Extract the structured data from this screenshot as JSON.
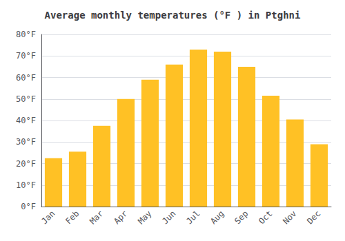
{
  "chart_data": {
    "type": "bar",
    "title": "Average monthly temperatures (°F ) in Ptghni",
    "categories": [
      "Jan",
      "Feb",
      "Mar",
      "Apr",
      "May",
      "Jun",
      "Jul",
      "Aug",
      "Sep",
      "Oct",
      "Nov",
      "Dec"
    ],
    "values": [
      22.5,
      25.5,
      37.5,
      50.0,
      59.0,
      66.0,
      73.0,
      72.0,
      65.0,
      51.5,
      40.5,
      29.0
    ],
    "color": "#FFC125",
    "ylim": [
      0,
      80
    ],
    "yticks": [
      {
        "value": 0,
        "label": "0°F"
      },
      {
        "value": 10,
        "label": "10°F"
      },
      {
        "value": 20,
        "label": "20°F"
      },
      {
        "value": 30,
        "label": "30°F"
      },
      {
        "value": 40,
        "label": "40°F"
      },
      {
        "value": 50,
        "label": "50°F"
      },
      {
        "value": 60,
        "label": "60°F"
      },
      {
        "value": 70,
        "label": "70°F"
      },
      {
        "value": 80,
        "label": "80°F"
      }
    ],
    "grid": true
  }
}
